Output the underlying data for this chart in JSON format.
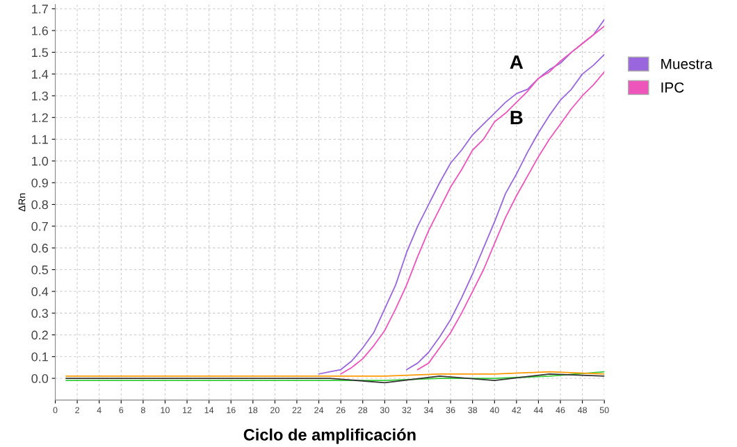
{
  "chart_data": {
    "type": "line",
    "xlabel": "Ciclo de amplificación",
    "ylabel": "ΔRn",
    "xlim": [
      0,
      50
    ],
    "ylim": [
      -0.1,
      1.72
    ],
    "xticks": [
      0,
      2,
      4,
      6,
      8,
      10,
      12,
      14,
      16,
      18,
      20,
      22,
      24,
      26,
      28,
      30,
      32,
      34,
      36,
      38,
      40,
      42,
      44,
      46,
      48,
      50
    ],
    "yticks": [
      {
        "value": 0,
        "label": "0.0"
      },
      0.1,
      0.2,
      0.3,
      0.4,
      0.5,
      0.6,
      0.7,
      0.8,
      0.9,
      {
        "value": 1,
        "label": "1.0"
      },
      1.1,
      1.2,
      1.3,
      1.4,
      1.5,
      1.6,
      1.7
    ],
    "grid": true,
    "legend": "right",
    "marker": "none",
    "line_style": "solid",
    "annotations": [
      "A",
      "B"
    ],
    "series": [
      {
        "name": "Muestra",
        "color": "#9966dd",
        "x": [
          24,
          25,
          26,
          27,
          28,
          29,
          30,
          31,
          32,
          33,
          34,
          35,
          36,
          37,
          38,
          39,
          40,
          41,
          42,
          43,
          44,
          45,
          46,
          47,
          48,
          49,
          50
        ],
        "values": [
          0.02,
          0.03,
          0.04,
          0.08,
          0.14,
          0.21,
          0.32,
          0.43,
          0.58,
          0.7,
          0.8,
          0.9,
          0.99,
          1.05,
          1.12,
          1.17,
          1.22,
          1.27,
          1.31,
          1.33,
          1.38,
          1.42,
          1.45,
          1.5,
          1.54,
          1.58,
          1.65
        ]
      },
      {
        "name": "IPC",
        "color": "#ee55bb",
        "x": [
          26,
          27,
          28,
          29,
          30,
          31,
          32,
          33,
          34,
          35,
          36,
          37,
          38,
          39,
          40,
          41,
          42,
          43,
          44,
          45,
          46,
          47,
          48,
          49,
          50
        ],
        "values": [
          0.02,
          0.05,
          0.09,
          0.15,
          0.22,
          0.32,
          0.43,
          0.56,
          0.68,
          0.78,
          0.88,
          0.96,
          1.05,
          1.1,
          1.18,
          1.22,
          1.27,
          1.32,
          1.38,
          1.41,
          1.46,
          1.5,
          1.54,
          1.58,
          1.62
        ]
      },
      {
        "color": "#9966dd",
        "x": [
          32,
          33,
          34,
          35,
          36,
          37,
          38,
          39,
          40,
          41,
          42,
          43,
          44,
          45,
          46,
          47,
          48,
          49,
          50
        ],
        "values": [
          0.04,
          0.07,
          0.12,
          0.19,
          0.27,
          0.37,
          0.48,
          0.6,
          0.72,
          0.85,
          0.94,
          1.04,
          1.13,
          1.21,
          1.28,
          1.33,
          1.4,
          1.44,
          1.49
        ]
      },
      {
        "color": "#ee55bb",
        "x": [
          33,
          34,
          35,
          36,
          37,
          38,
          39,
          40,
          41,
          42,
          43,
          44,
          45,
          46,
          47,
          48,
          49,
          50
        ],
        "values": [
          0.04,
          0.07,
          0.14,
          0.21,
          0.3,
          0.4,
          0.5,
          0.62,
          0.74,
          0.84,
          0.93,
          1.02,
          1.1,
          1.17,
          1.24,
          1.3,
          1.35,
          1.41
        ]
      },
      {
        "color": "#33cc33",
        "x": [
          1,
          5,
          10,
          15,
          20,
          25,
          30,
          35,
          40,
          45,
          50
        ],
        "values": [
          -0.01,
          -0.01,
          -0.01,
          -0.01,
          -0.01,
          -0.01,
          -0.01,
          0,
          0,
          0.01,
          0.03
        ]
      },
      {
        "color": "#ff9900",
        "x": [
          1,
          5,
          10,
          15,
          20,
          25,
          30,
          35,
          40,
          45,
          50
        ],
        "values": [
          0.01,
          0.01,
          0.01,
          0.01,
          0.01,
          0.01,
          0.01,
          0.02,
          0.02,
          0.03,
          0.02
        ]
      },
      {
        "color": "#333333",
        "x": [
          1,
          5,
          10,
          15,
          20,
          25,
          30,
          35,
          40,
          45,
          50
        ],
        "values": [
          0,
          0,
          0,
          0,
          0,
          0,
          -0.02,
          0.01,
          -0.01,
          0.02,
          0.01
        ]
      }
    ]
  }
}
